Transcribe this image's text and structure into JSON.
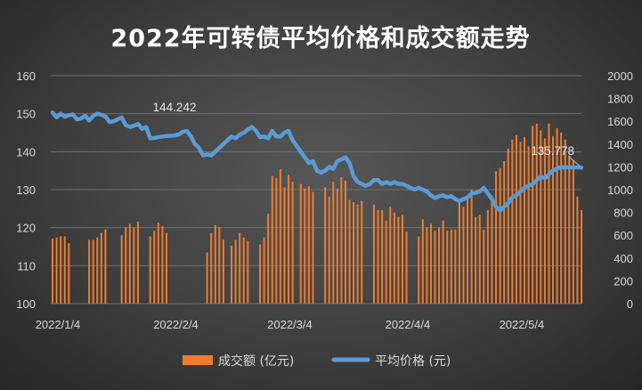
{
  "chart_data": {
    "type": "bar+line",
    "title": "2022年可转债平均价格和成交额走势",
    "x_tick_labels": [
      "2022/1/4",
      "2022/2/4",
      "2022/3/4",
      "2022/4/4",
      "2022/5/4"
    ],
    "y_left": {
      "min": 100,
      "max": 160,
      "ticks": [
        100,
        110,
        120,
        130,
        140,
        150,
        160
      ]
    },
    "y_right": {
      "min": 0,
      "max": 2000,
      "ticks": [
        0,
        200,
        400,
        600,
        800,
        1000,
        1200,
        1400,
        1600,
        1800,
        2000
      ]
    },
    "grid": true,
    "legend_position": "bottom",
    "colors": {
      "bar": "#ed7d31",
      "line": "#5b9bd5",
      "grid": "#6f6f6f",
      "text": "#d9d9d9"
    },
    "series": [
      {
        "name": "成交额 (亿元)",
        "type": "bar",
        "axis": "right",
        "x_day_index": [
          0,
          1,
          2,
          3,
          4,
          9,
          10,
          11,
          12,
          13,
          17,
          18,
          19,
          20,
          21,
          24,
          25,
          26,
          27,
          28,
          38,
          39,
          40,
          41,
          42,
          44,
          45,
          46,
          47,
          48,
          51,
          52,
          53,
          54,
          55,
          56,
          57,
          58,
          59,
          61,
          62,
          63,
          64,
          67,
          68,
          69,
          70,
          71,
          72,
          73,
          74,
          75,
          76,
          79,
          80,
          81,
          82,
          83,
          84,
          85,
          86,
          87,
          90,
          91,
          92,
          93,
          94,
          95,
          96,
          97,
          98,
          99,
          100,
          101,
          102,
          103,
          104,
          105,
          106,
          107,
          108,
          109,
          110,
          111,
          112,
          113,
          114,
          115,
          116,
          117,
          118,
          119,
          120,
          121,
          122,
          123,
          124,
          125,
          126,
          127,
          128,
          129,
          130
        ],
        "values": [
          570,
          580,
          590,
          590,
          530,
          560,
          560,
          580,
          620,
          650,
          600,
          670,
          700,
          670,
          720,
          590,
          640,
          710,
          680,
          620,
          450,
          620,
          690,
          670,
          560,
          510,
          560,
          620,
          580,
          550,
          520,
          580,
          790,
          1120,
          1100,
          1180,
          1020,
          1130,
          1070,
          1050,
          1010,
          1030,
          980,
          1020,
          940,
          1070,
          1010,
          1110,
          1080,
          910,
          890,
          870,
          900,
          870,
          820,
          820,
          730,
          850,
          800,
          760,
          780,
          630,
          590,
          740,
          670,
          700,
          640,
          670,
          730,
          640,
          650,
          650,
          900,
          850,
          940,
          1000,
          760,
          780,
          650,
          820,
          950,
          1160,
          1190,
          1250,
          1360,
          1440,
          1480,
          1420,
          1460,
          1380,
          1560,
          1580,
          1520,
          1450,
          1580,
          1470,
          1540,
          1500,
          1440,
          1300,
          1260,
          940,
          820
        ]
      },
      {
        "name": "平均价格 (元)",
        "type": "line",
        "axis": "left",
        "x_day_index": [
          0,
          1,
          2,
          3,
          4,
          5,
          6,
          7,
          8,
          9,
          10,
          11,
          12,
          13,
          14,
          15,
          16,
          17,
          18,
          19,
          20,
          21,
          22,
          23,
          24,
          25,
          26,
          27,
          28,
          29,
          30,
          31,
          32,
          33,
          34,
          35,
          36,
          37,
          38,
          39,
          40,
          41,
          42,
          43,
          44,
          45,
          46,
          47,
          48,
          49,
          50,
          51,
          52,
          53,
          54,
          55,
          56,
          57,
          58,
          59,
          60,
          61,
          62,
          63,
          64,
          65,
          66,
          67,
          68,
          69,
          70,
          71,
          72,
          73,
          74,
          75,
          76,
          77,
          78,
          79,
          80,
          81,
          82,
          83,
          84,
          85,
          86,
          87,
          88,
          89,
          90,
          91,
          92,
          93,
          94,
          95,
          96,
          97,
          98,
          99,
          100,
          101,
          102,
          103,
          104,
          105,
          106,
          107,
          108,
          109,
          110,
          111,
          112,
          113,
          114,
          115,
          116,
          117,
          118,
          119,
          120,
          121,
          122,
          123,
          124,
          125,
          126,
          127,
          128,
          129,
          130
        ],
        "values": [
          150.3,
          149.0,
          150.0,
          149.2,
          149.6,
          149.8,
          148.5,
          148.7,
          149.5,
          148.2,
          149.4,
          150.0,
          149.7,
          149.3,
          147.8,
          148.0,
          148.5,
          149.0,
          147.0,
          146.5,
          146.8,
          147.3,
          146.0,
          146.5,
          143.5,
          143.6,
          143.8,
          144.0,
          144.1,
          144.2,
          144.24,
          144.5,
          145.2,
          145.5,
          144.0,
          142.0,
          141.0,
          139.0,
          139.3,
          139.0,
          140.0,
          141.0,
          142.0,
          143.0,
          144.0,
          143.5,
          144.5,
          145.0,
          145.8,
          146.5,
          145.5,
          143.8,
          144.0,
          143.5,
          145.5,
          144.0,
          144.0,
          145.0,
          145.5,
          143.0,
          141.5,
          140.0,
          138.5,
          137.0,
          137.5,
          135.0,
          134.5,
          135.0,
          136.0,
          135.5,
          137.5,
          138.0,
          138.5,
          137.0,
          133.5,
          132.0,
          131.5,
          131.0,
          131.5,
          132.5,
          132.5,
          131.5,
          132.0,
          131.5,
          132.0,
          131.5,
          131.5,
          131.0,
          130.5,
          130.0,
          130.5,
          130.0,
          129.5,
          128.5,
          127.8,
          128.3,
          128.5,
          128.0,
          128.3,
          127.5,
          127.0,
          127.5,
          128.0,
          129.0,
          129.2,
          129.5,
          130.5,
          129.0,
          127.5,
          125.5,
          124.5,
          125.5,
          126.5,
          128.0,
          128.5,
          129.5,
          130.5,
          131.0,
          131.5,
          132.5,
          133.5,
          133.0,
          134.0,
          135.0,
          135.5,
          136.0,
          135.8,
          136.0,
          135.8,
          135.9,
          135.778
        ]
      }
    ],
    "x_tick_day_index": [
      0,
      29,
      57,
      86,
      114
    ],
    "annotations": [
      {
        "text": "144.242",
        "x_day_index": 30
      },
      {
        "text": "135.778",
        "x_day_index": 130
      }
    ]
  },
  "legend": {
    "bar_label": "成交额 (亿元)",
    "line_label": "平均价格 (元)"
  }
}
